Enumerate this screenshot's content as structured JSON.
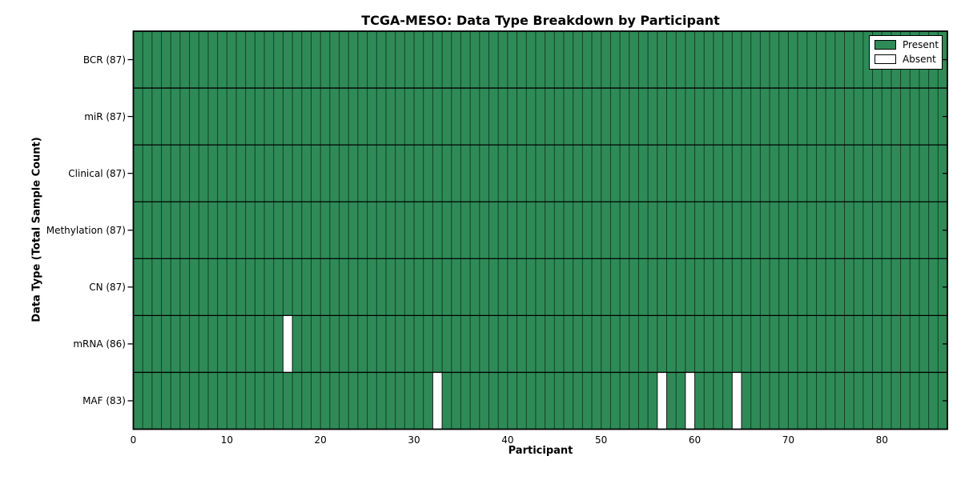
{
  "chart_data": {
    "type": "heatmap",
    "title": "TCGA-MESO: Data Type Breakdown by Participant",
    "xlabel": "Participant",
    "ylabel": "Data Type (Total Sample Count)",
    "n_participants": 87,
    "x_ticks": [
      0,
      10,
      20,
      30,
      40,
      50,
      60,
      70,
      80
    ],
    "rows": [
      {
        "name": "BCR",
        "label": "BCR (87)",
        "present_count": 87,
        "absent_participants": []
      },
      {
        "name": "miR",
        "label": "miR (87)",
        "present_count": 87,
        "absent_participants": []
      },
      {
        "name": "Clinical",
        "label": "Clinical (87)",
        "present_count": 87,
        "absent_participants": []
      },
      {
        "name": "Methylation",
        "label": "Methylation (87)",
        "present_count": 87,
        "absent_participants": []
      },
      {
        "name": "CN",
        "label": "CN (87)",
        "present_count": 87,
        "absent_participants": []
      },
      {
        "name": "mRNA",
        "label": "mRNA (86)",
        "present_count": 86,
        "absent_participants": [
          16
        ]
      },
      {
        "name": "MAF",
        "label": "MAF (83)",
        "present_count": 83,
        "absent_participants": [
          32,
          56,
          59,
          64
        ]
      }
    ],
    "colors": {
      "present": "#2e8b57",
      "absent": "#ffffff",
      "grid": "#000000"
    },
    "legend": [
      {
        "label": "Present",
        "color": "#2e8b57"
      },
      {
        "label": "Absent",
        "color": "#ffffff"
      }
    ],
    "legend_position": "upper right",
    "grid": "per-participant vertical lines and row dividers"
  }
}
